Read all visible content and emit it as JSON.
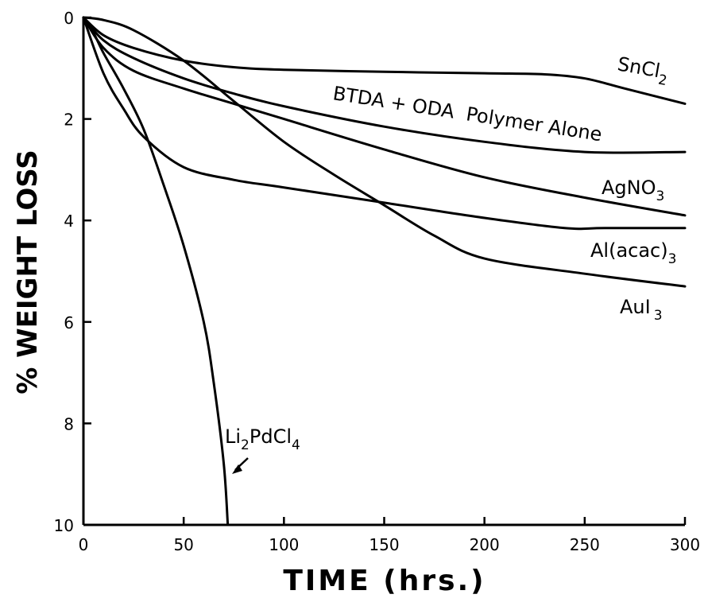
{
  "chart_data": {
    "type": "line",
    "xlabel": "TIME (hrs.)",
    "ylabel": "% WEIGHT LOSS",
    "xlim": [
      0,
      300
    ],
    "ylim": [
      0,
      10
    ],
    "y_inverted": true,
    "grid": false,
    "legend": "none (series labelled at right end of curves)",
    "x_ticks": [
      "0",
      "50",
      "100",
      "150",
      "200",
      "250",
      "300"
    ],
    "y_ticks": [
      "0",
      "2",
      "4",
      "6",
      "8",
      "10"
    ],
    "series": [
      {
        "name": "SnCl2",
        "label_main": "SnCl",
        "label_sub": "2",
        "x": [
          0,
          10,
          25,
          50,
          75,
          100,
          150,
          200,
          230,
          250,
          270,
          300
        ],
        "y": [
          0,
          0.35,
          0.6,
          0.85,
          0.98,
          1.03,
          1.07,
          1.1,
          1.12,
          1.2,
          1.4,
          1.7
        ]
      },
      {
        "name": "BTDA + ODA Polymer Alone",
        "label_main": "BTDA + ODA  Polymer Alone",
        "label_sub": "",
        "x": [
          0,
          10,
          25,
          50,
          75,
          100,
          150,
          200,
          250,
          300
        ],
        "y": [
          0,
          0.45,
          0.8,
          1.2,
          1.5,
          1.75,
          2.15,
          2.45,
          2.65,
          2.65
        ]
      },
      {
        "name": "AgNO3",
        "label_main": "AgNO",
        "label_sub": "3",
        "x": [
          0,
          10,
          25,
          50,
          75,
          100,
          150,
          200,
          250,
          300
        ],
        "y": [
          0,
          0.6,
          1.05,
          1.4,
          1.7,
          2.0,
          2.6,
          3.15,
          3.55,
          3.9
        ]
      },
      {
        "name": "Al(acac)3",
        "label_main": "Al(acac)",
        "label_sub": "3",
        "x": [
          0,
          10,
          20,
          30,
          50,
          75,
          100,
          150,
          200,
          240,
          260,
          300
        ],
        "y": [
          0,
          1.1,
          1.8,
          2.35,
          2.95,
          3.2,
          3.35,
          3.65,
          3.95,
          4.15,
          4.15,
          4.15
        ]
      },
      {
        "name": "AuI3",
        "label_main": "AuI",
        "label_sub": "3",
        "x": [
          0,
          10,
          25,
          50,
          75,
          100,
          125,
          150,
          175,
          200,
          250,
          300
        ],
        "y": [
          0,
          0.05,
          0.25,
          0.85,
          1.65,
          2.45,
          3.1,
          3.7,
          4.3,
          4.75,
          5.05,
          5.3
        ]
      },
      {
        "name": "Li2PdCl4",
        "label_main": "Li",
        "label_sub": "2",
        "label_main2": "PdCl",
        "label_sub2": "4",
        "x": [
          0,
          5,
          10,
          20,
          30,
          40,
          50,
          60,
          65,
          70,
          72
        ],
        "y": [
          0,
          0.3,
          0.7,
          1.4,
          2.2,
          3.3,
          4.5,
          6.0,
          7.2,
          8.8,
          10
        ]
      }
    ]
  }
}
